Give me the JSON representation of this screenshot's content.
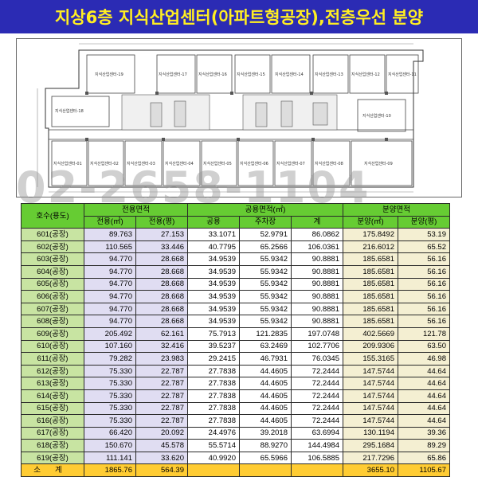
{
  "banner": {
    "title": "지상6층 지식산업센터(아파트형공장),전층우선 분양"
  },
  "watermark": {
    "phone": "02-2658-1104"
  },
  "floorplan": {
    "room_labels_top": [
      "지식산업센터-19",
      "지식산업센터-17",
      "지식산업센터-16",
      "지식산업센터-15",
      "지식산업센터-14",
      "지식산업센터-13",
      "지식산업센터-12",
      "지식산업센터-11"
    ],
    "room_labels_bottom": [
      "지식산업센터-01",
      "지식산업센터-02",
      "지식산업센터-03",
      "지식산업센터-04",
      "지식산업센터-05",
      "지식산업센터-06",
      "지식산업센터-07",
      "지식산업센터-08",
      "지식산업센터-09"
    ],
    "room_label_left": "지식산업센터-18",
    "room_label_right": "지식산업센터-10"
  },
  "table": {
    "header": {
      "unit": "호수(용도)",
      "exclusive_group": "전용면적",
      "common_group": "공용면적(㎡)",
      "sale_group": "분양면적",
      "excl_m2": "전용(㎡)",
      "excl_py": "전용(평)",
      "common": "공용",
      "parking": "주차장",
      "sum": "계",
      "sale_m2": "분양(㎡)",
      "sale_py": "분양(평)"
    },
    "rows": [
      {
        "unit": "601(공장)",
        "excl_m2": "89.763",
        "excl_py": "27.153",
        "common": "33.1071",
        "parking": "52.9791",
        "sum": "86.0862",
        "sale_m2": "175.8492",
        "sale_py": "53.19"
      },
      {
        "unit": "602(공장)",
        "excl_m2": "110.565",
        "excl_py": "33.446",
        "common": "40.7795",
        "parking": "65.2566",
        "sum": "106.0361",
        "sale_m2": "216.6012",
        "sale_py": "65.52"
      },
      {
        "unit": "603(공장)",
        "excl_m2": "94.770",
        "excl_py": "28.668",
        "common": "34.9539",
        "parking": "55.9342",
        "sum": "90.8881",
        "sale_m2": "185.6581",
        "sale_py": "56.16"
      },
      {
        "unit": "604(공장)",
        "excl_m2": "94.770",
        "excl_py": "28.668",
        "common": "34.9539",
        "parking": "55.9342",
        "sum": "90.8881",
        "sale_m2": "185.6581",
        "sale_py": "56.16"
      },
      {
        "unit": "605(공장)",
        "excl_m2": "94.770",
        "excl_py": "28.668",
        "common": "34.9539",
        "parking": "55.9342",
        "sum": "90.8881",
        "sale_m2": "185.6581",
        "sale_py": "56.16"
      },
      {
        "unit": "606(공장)",
        "excl_m2": "94.770",
        "excl_py": "28.668",
        "common": "34.9539",
        "parking": "55.9342",
        "sum": "90.8881",
        "sale_m2": "185.6581",
        "sale_py": "56.16"
      },
      {
        "unit": "607(공장)",
        "excl_m2": "94.770",
        "excl_py": "28.668",
        "common": "34.9539",
        "parking": "55.9342",
        "sum": "90.8881",
        "sale_m2": "185.6581",
        "sale_py": "56.16"
      },
      {
        "unit": "608(공장)",
        "excl_m2": "94.770",
        "excl_py": "28.668",
        "common": "34.9539",
        "parking": "55.9342",
        "sum": "90.8881",
        "sale_m2": "185.6581",
        "sale_py": "56.16"
      },
      {
        "unit": "609(공장)",
        "excl_m2": "205.492",
        "excl_py": "62.161",
        "common": "75.7913",
        "parking": "121.2835",
        "sum": "197.0748",
        "sale_m2": "402.5669",
        "sale_py": "121.78"
      },
      {
        "unit": "610(공장)",
        "excl_m2": "107.160",
        "excl_py": "32.416",
        "common": "39.5237",
        "parking": "63.2469",
        "sum": "102.7706",
        "sale_m2": "209.9306",
        "sale_py": "63.50"
      },
      {
        "unit": "611(공장)",
        "excl_m2": "79.282",
        "excl_py": "23.983",
        "common": "29.2415",
        "parking": "46.7931",
        "sum": "76.0345",
        "sale_m2": "155.3165",
        "sale_py": "46.98"
      },
      {
        "unit": "612(공장)",
        "excl_m2": "75.330",
        "excl_py": "22.787",
        "common": "27.7838",
        "parking": "44.4605",
        "sum": "72.2444",
        "sale_m2": "147.5744",
        "sale_py": "44.64"
      },
      {
        "unit": "613(공장)",
        "excl_m2": "75.330",
        "excl_py": "22.787",
        "common": "27.7838",
        "parking": "44.4605",
        "sum": "72.2444",
        "sale_m2": "147.5744",
        "sale_py": "44.64"
      },
      {
        "unit": "614(공장)",
        "excl_m2": "75.330",
        "excl_py": "22.787",
        "common": "27.7838",
        "parking": "44.4605",
        "sum": "72.2444",
        "sale_m2": "147.5744",
        "sale_py": "44.64"
      },
      {
        "unit": "615(공장)",
        "excl_m2": "75.330",
        "excl_py": "22.787",
        "common": "27.7838",
        "parking": "44.4605",
        "sum": "72.2444",
        "sale_m2": "147.5744",
        "sale_py": "44.64"
      },
      {
        "unit": "616(공장)",
        "excl_m2": "75.330",
        "excl_py": "22.787",
        "common": "27.7838",
        "parking": "44.4605",
        "sum": "72.2444",
        "sale_m2": "147.5744",
        "sale_py": "44.64"
      },
      {
        "unit": "617(공장)",
        "excl_m2": "66.420",
        "excl_py": "20.092",
        "common": "24.4976",
        "parking": "39.2018",
        "sum": "63.6994",
        "sale_m2": "130.1194",
        "sale_py": "39.36"
      },
      {
        "unit": "618(공장)",
        "excl_m2": "150.670",
        "excl_py": "45.578",
        "common": "55.5714",
        "parking": "88.9270",
        "sum": "144.4984",
        "sale_m2": "295.1684",
        "sale_py": "89.29"
      },
      {
        "unit": "619(공장)",
        "excl_m2": "111.141",
        "excl_py": "33.620",
        "common": "40.9920",
        "parking": "65.5966",
        "sum": "106.5885",
        "sale_m2": "217.7296",
        "sale_py": "65.86"
      }
    ],
    "total": {
      "unit": "소계",
      "excl_m2": "1865.76",
      "excl_py": "564.39",
      "common": "",
      "parking": "",
      "sum": "",
      "sale_m2": "3655.10",
      "sale_py": "1105.67"
    }
  }
}
